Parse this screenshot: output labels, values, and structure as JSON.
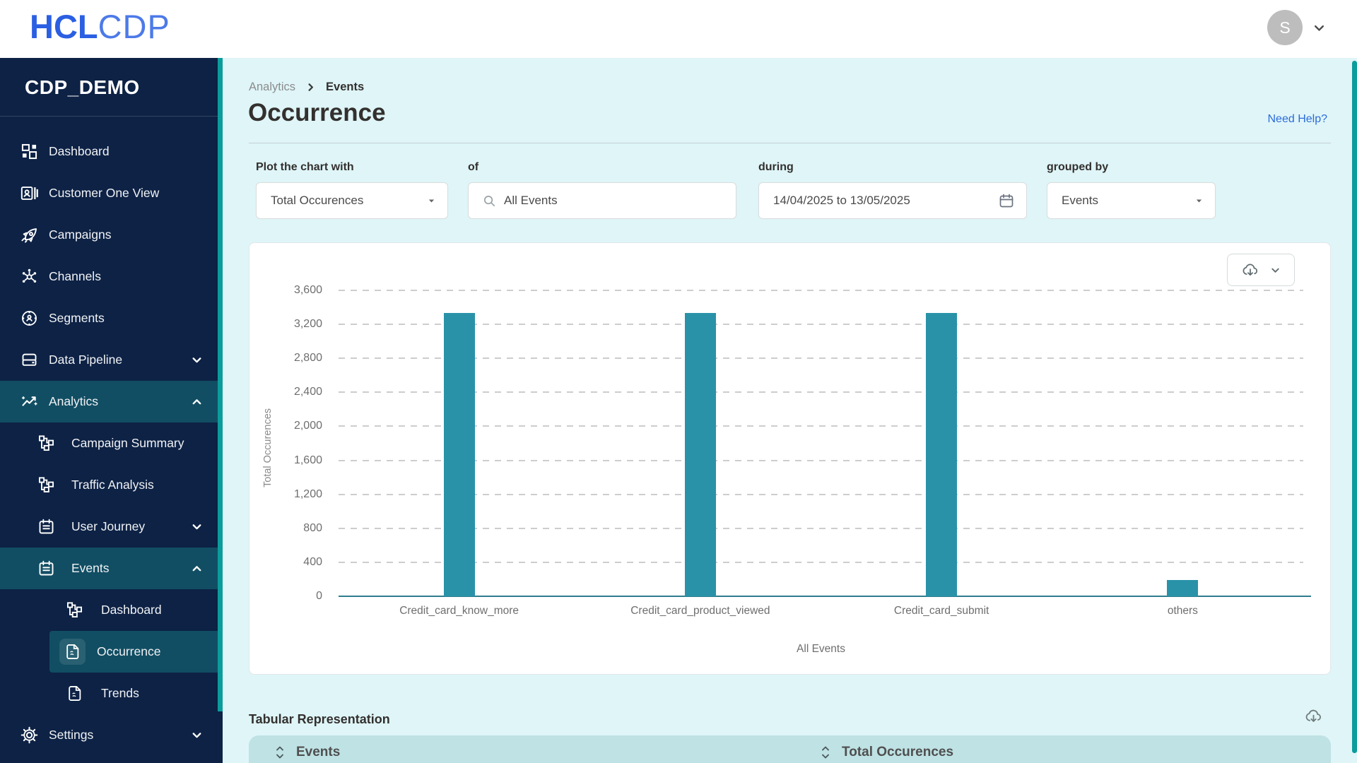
{
  "header": {
    "logo": {
      "bold": "HCL",
      "light": "CDP"
    },
    "avatar_initial": "S"
  },
  "sidebar": {
    "workspace": "CDP_DEMO",
    "items": [
      {
        "label": "Dashboard",
        "icon": "dashboard",
        "level": 0
      },
      {
        "label": "Customer One View",
        "icon": "customer-card",
        "level": 0
      },
      {
        "label": "Campaigns",
        "icon": "rocket",
        "level": 0
      },
      {
        "label": "Channels",
        "icon": "network",
        "level": 0
      },
      {
        "label": "Segments",
        "icon": "segments",
        "level": 0
      },
      {
        "label": "Data Pipeline",
        "icon": "data-drive",
        "level": 0,
        "chevron": "down"
      },
      {
        "label": "Analytics",
        "icon": "analytics",
        "level": 0,
        "chevron": "up",
        "active": true
      },
      {
        "label": "Campaign Summary",
        "icon": "sitemap",
        "level": 1
      },
      {
        "label": "Traffic Analysis",
        "icon": "sitemap",
        "level": 1
      },
      {
        "label": "User Journey",
        "icon": "calendar",
        "level": 1,
        "chevron": "down"
      },
      {
        "label": "Events",
        "icon": "calendar",
        "level": 1,
        "chevron": "up",
        "active": true
      },
      {
        "label": "Dashboard",
        "icon": "sitemap",
        "level": 2
      },
      {
        "label": "Occurrence",
        "icon": "file",
        "level": 2,
        "active": true,
        "selected": true
      },
      {
        "label": "Trends",
        "icon": "file",
        "level": 2
      },
      {
        "label": "Settings",
        "icon": "gear",
        "level": 0,
        "chevron": "down"
      }
    ]
  },
  "breadcrumb": {
    "parent": "Analytics",
    "current": "Events"
  },
  "page": {
    "title": "Occurrence",
    "help_link": "Need Help?"
  },
  "filters": {
    "plot": {
      "label": "Plot the chart with",
      "value": "Total Occurences"
    },
    "of": {
      "label": "of",
      "value": "All Events"
    },
    "during": {
      "label": "during",
      "value": "14/04/2025 to 13/05/2025"
    },
    "grouped": {
      "label": "grouped by",
      "value": "Events"
    }
  },
  "chart_data": {
    "type": "bar",
    "categories": [
      "Credit_card_know_more",
      "Credit_card_product_viewed",
      "Credit_card_submit",
      "others"
    ],
    "values": [
      3330,
      3330,
      3330,
      190
    ],
    "title": "",
    "xlabel": "All Events",
    "ylabel": "Total Occurences",
    "ylim": [
      0,
      3600
    ],
    "ytick_step": 400,
    "yticks": [
      "0",
      "400",
      "800",
      "1,200",
      "1,600",
      "2,000",
      "2,400",
      "2,800",
      "3,200",
      "3,600"
    ],
    "grid": "dashed-horizontal",
    "legend": "none",
    "bar_color": "#2992A8"
  },
  "table": {
    "title": "Tabular Representation",
    "columns": [
      "Events",
      "Total Occurences"
    ]
  },
  "colors": {
    "logo_blue": "#2B5FE3",
    "sidebar_bg": "#0D2245",
    "sidebar_active_bg": "#114E63",
    "page_bg": "#DFF5F8",
    "bar": "#2992A8",
    "axis_teal": "#2E7D8F",
    "table_header_bg": "#BFE2E4",
    "link_blue": "#2B6BD9",
    "scrollbar_teal": "#0B9C9C",
    "text_dark": "#33302E",
    "text_gray": "#6E6E6E"
  }
}
